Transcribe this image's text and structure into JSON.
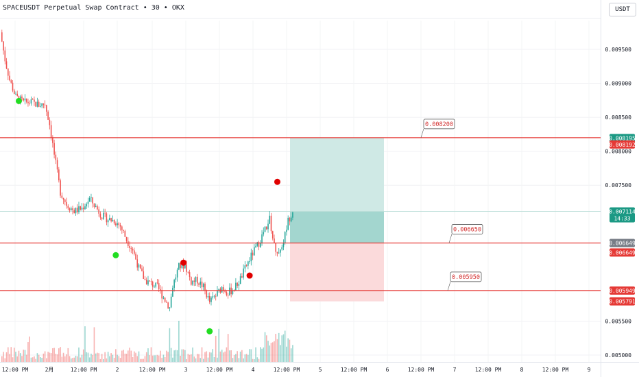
{
  "header": {
    "title": "SPACEUSDT Perpetual Swap Contract • 30 • OKX",
    "currency": "USDT"
  },
  "chart_data": {
    "type": "candlestick",
    "ylim": [
      0.00495,
      0.00985
    ],
    "y_ticks": [
      "0.009500",
      "0.009000",
      "0.008500",
      "0.008000",
      "0.007500",
      "0.005500",
      "0.005000"
    ],
    "x_ticks": [
      "12:00 PM",
      "2月",
      "12:00 PM",
      "2",
      "12:00 PM",
      "3",
      "12:00 PM",
      "4",
      "12:00 PM",
      "5",
      "12:00 PM",
      "6",
      "12:00 PM",
      "7",
      "12:00 PM",
      "8",
      "12:00 PM",
      "9"
    ],
    "x_tick_index": [
      0,
      1,
      2,
      3,
      4,
      5,
      6,
      7,
      8,
      9,
      10,
      11,
      12,
      13,
      14,
      15,
      16,
      17
    ],
    "price_path": [
      [
        0,
        0.00975
      ],
      [
        3,
        0.00935
      ],
      [
        6,
        0.00905
      ],
      [
        10,
        0.0088
      ],
      [
        15,
        0.00872
      ],
      [
        20,
        0.00872
      ],
      [
        25,
        0.00868
      ],
      [
        29,
        0.0087
      ],
      [
        32,
        0.0084
      ],
      [
        35,
        0.00795
      ],
      [
        39,
        0.0074
      ],
      [
        43,
        0.00722
      ],
      [
        48,
        0.00712
      ],
      [
        53,
        0.00716
      ],
      [
        58,
        0.0073
      ],
      [
        62,
        0.00718
      ],
      [
        66,
        0.00705
      ],
      [
        70,
        0.007
      ],
      [
        74,
        0.00698
      ],
      [
        78,
        0.0069
      ],
      [
        82,
        0.0067
      ],
      [
        86,
        0.00655
      ],
      [
        90,
        0.00628
      ],
      [
        94,
        0.0061
      ],
      [
        98,
        0.00605
      ],
      [
        102,
        0.006
      ],
      [
        106,
        0.00585
      ],
      [
        110,
        0.0057
      ],
      [
        112,
        0.00602
      ],
      [
        116,
        0.0063
      ],
      [
        120,
        0.00633
      ],
      [
        124,
        0.00608
      ],
      [
        128,
        0.0061
      ],
      [
        132,
        0.006
      ],
      [
        136,
        0.00578
      ],
      [
        140,
        0.00588
      ],
      [
        144,
        0.006
      ],
      [
        148,
        0.00592
      ],
      [
        152,
        0.00598
      ],
      [
        156,
        0.00612
      ],
      [
        160,
        0.00632
      ],
      [
        164,
        0.0065
      ],
      [
        168,
        0.00665
      ],
      [
        172,
        0.00685
      ],
      [
        175,
        0.007
      ],
      [
        178,
        0.0066
      ],
      [
        181,
        0.0065
      ],
      [
        184,
        0.00668
      ],
      [
        187,
        0.00698
      ],
      [
        190,
        0.00712
      ]
    ],
    "n_candles": 190,
    "last_price": 0.007114,
    "countdown": "14:33",
    "levels": [
      {
        "price": 0.0082,
        "label": "0.008200",
        "axis_price": "0.008192"
      },
      {
        "price": 0.00665,
        "label": "0.006650",
        "axis_price": "0.006649"
      },
      {
        "price": 0.00595,
        "label": "0.005950",
        "axis_price": "0.005949"
      }
    ],
    "position": {
      "entry": 0.007114,
      "target": 0.008195,
      "stop": 0.005791,
      "target_label": "0.008195",
      "stop_label": "0.005791",
      "start_candle": 190,
      "end_candle": 250
    },
    "signals": [
      {
        "candle": 11,
        "price": 0.00874,
        "type": "buy"
      },
      {
        "candle": 74,
        "price": 0.00647,
        "type": "buy"
      },
      {
        "candle": 118,
        "price": 0.00636,
        "type": "sell"
      },
      {
        "candle": 135,
        "price": 0.00535,
        "type": "buy"
      },
      {
        "candle": 161,
        "price": 0.00617,
        "type": "sell"
      },
      {
        "candle": 179,
        "price": 0.00755,
        "type": "sell"
      }
    ],
    "colors": {
      "up": "#26a69a",
      "down": "#ef5350",
      "level": "#e53935",
      "buy_signal": "#22dd22",
      "sell_signal": "#e00000",
      "target_zone": "#cfe9e5",
      "target_zone_dark": "#a3d6cf",
      "stop_zone": "#fbdadb",
      "price_label": "#1b9984"
    },
    "legend": "none",
    "grid": true
  }
}
